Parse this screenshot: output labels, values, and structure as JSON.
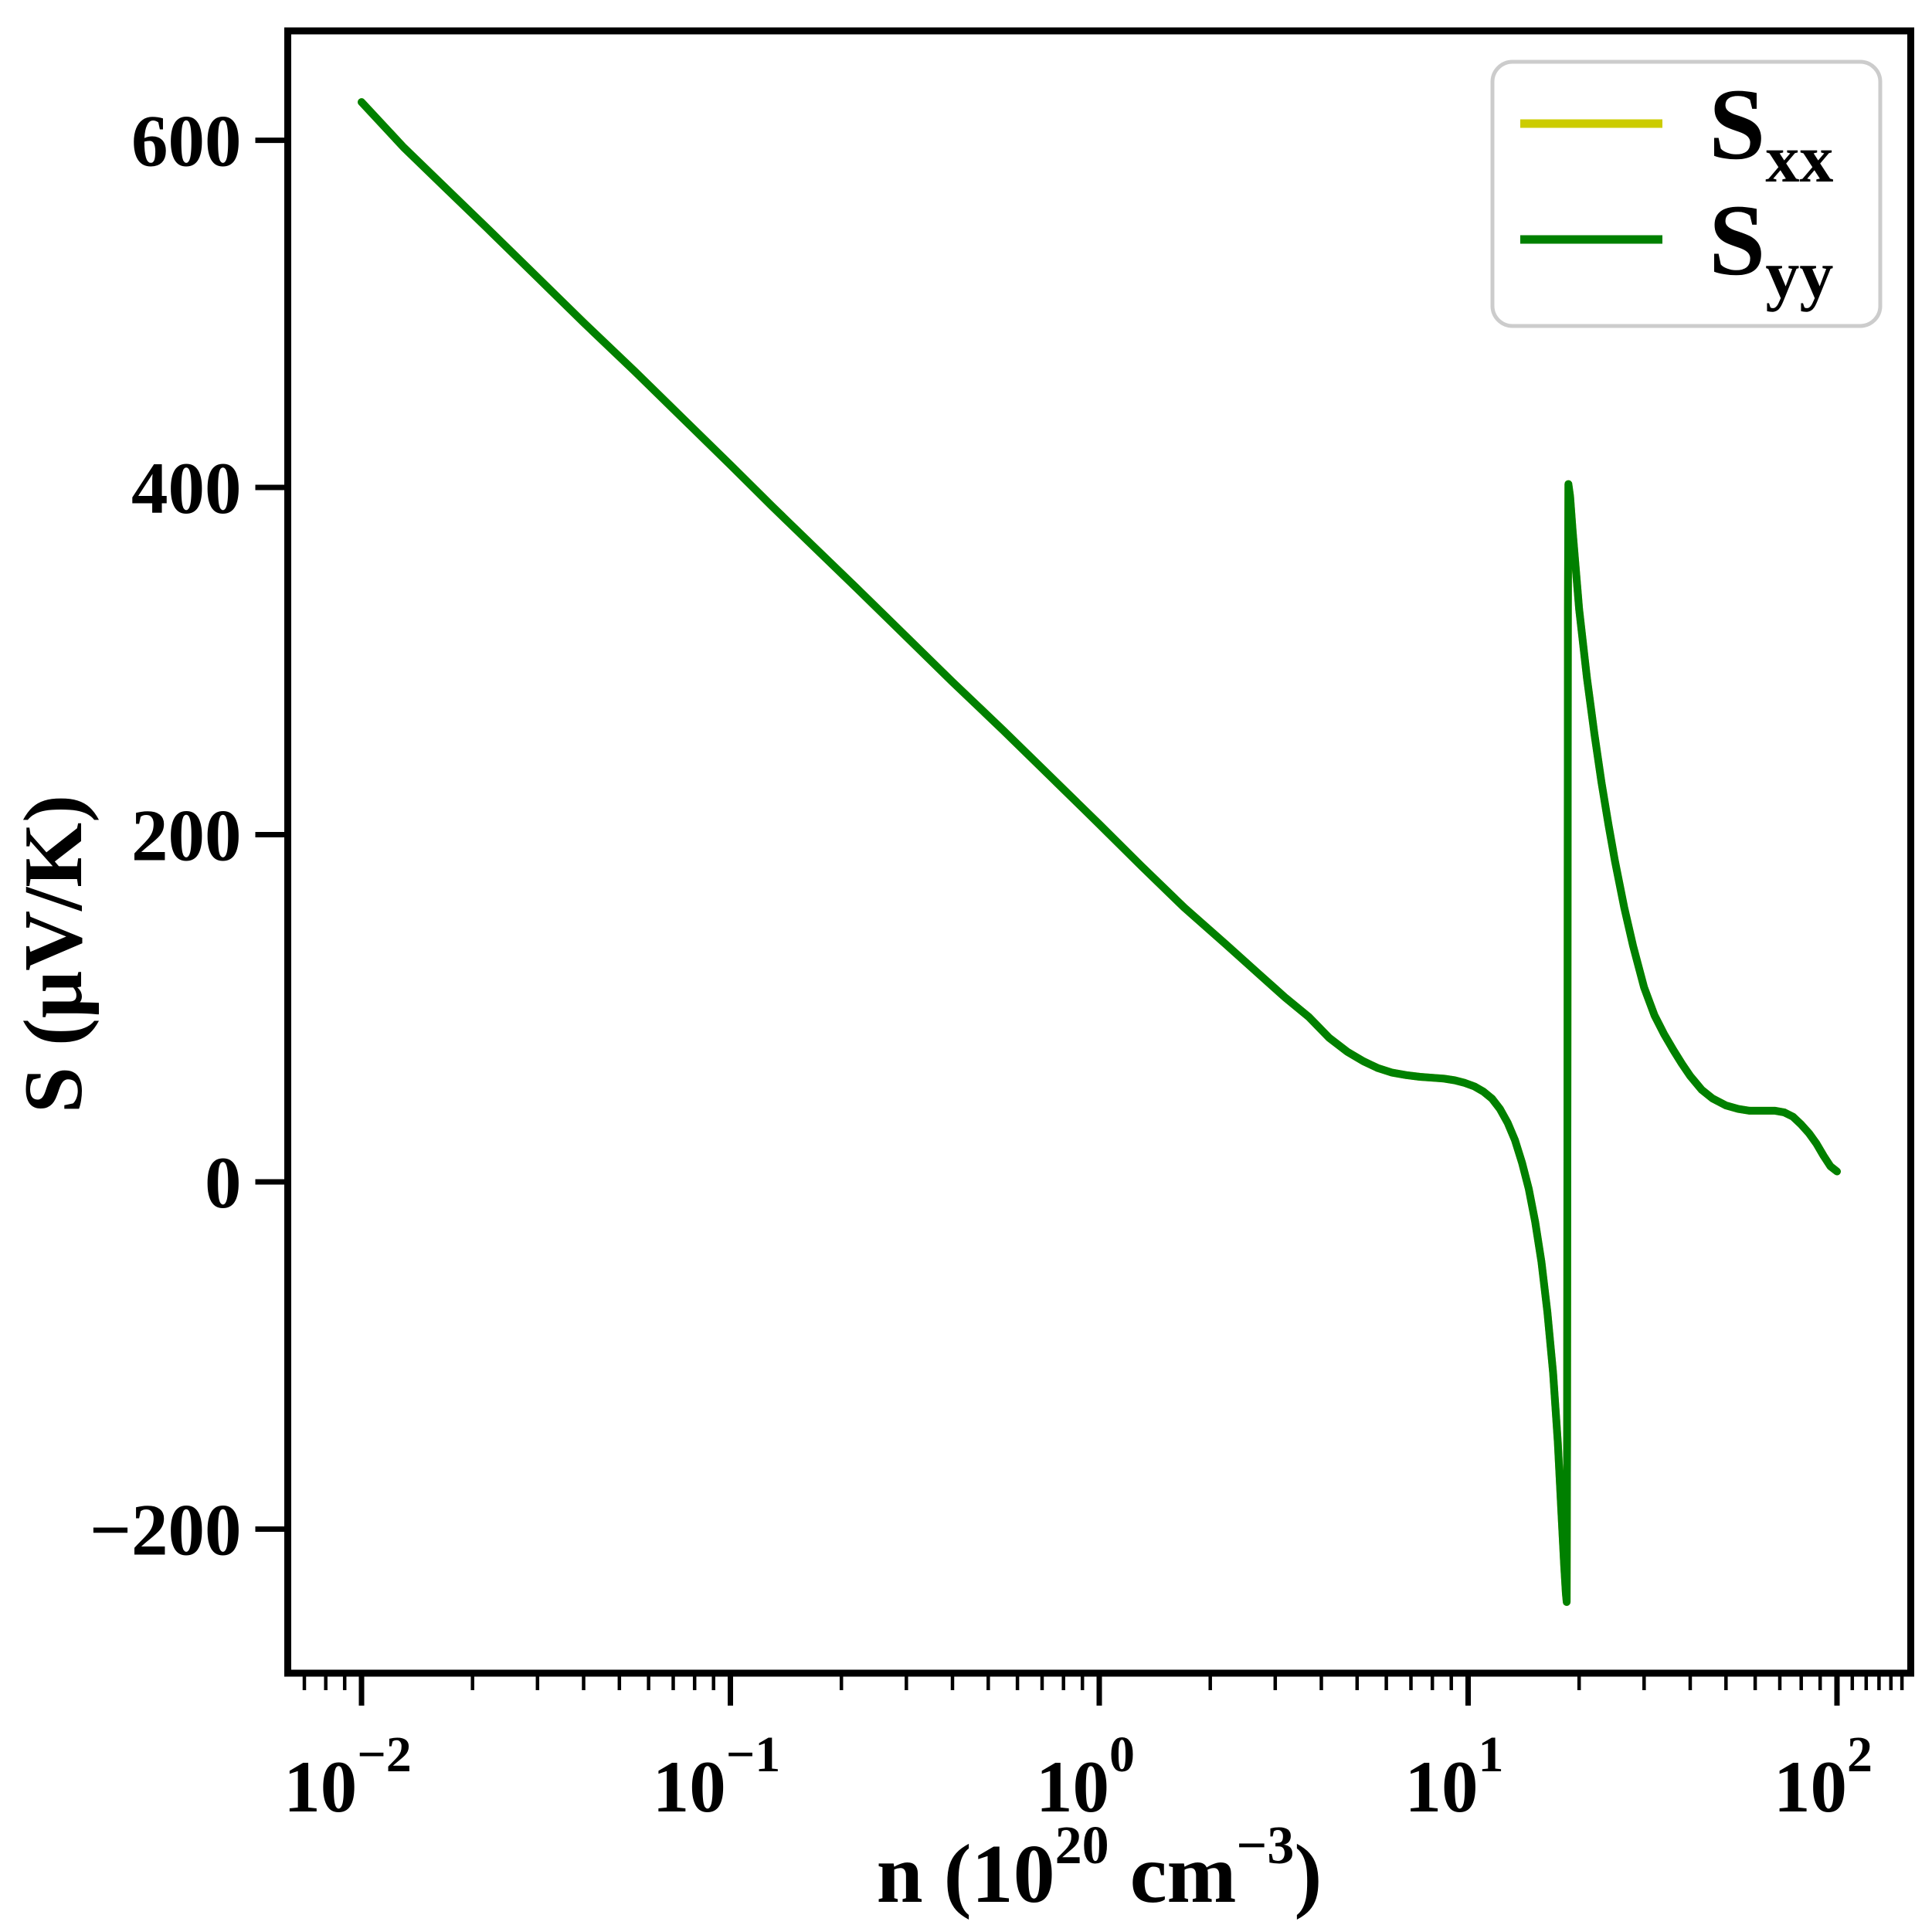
{
  "figure": {
    "background": "#ffffff",
    "axis_color": "#000000"
  },
  "chart_data": {
    "type": "line",
    "title": "",
    "xlabel": "n (10^20 cm^-3)",
    "xlabel_parts": [
      {
        "t": "n (10",
        "sup": false
      },
      {
        "t": "20",
        "sup": true
      },
      {
        "t": "  cm",
        "sup": false
      },
      {
        "t": "−3",
        "sup": true
      },
      {
        "t": ")",
        "sup": false
      }
    ],
    "ylabel": "S (μV/K)",
    "x_scale": "log",
    "xlim_log10": [
      -2.2,
      2.2
    ],
    "ylim": [
      -283,
      663
    ],
    "grid": false,
    "x_major_ticks": [
      {
        "value": 0.01,
        "base": "10",
        "exp": "−2"
      },
      {
        "value": 0.1,
        "base": "10",
        "exp": "−1"
      },
      {
        "value": 1,
        "base": "10",
        "exp": "0"
      },
      {
        "value": 10,
        "base": "10",
        "exp": "1"
      },
      {
        "value": 100,
        "base": "10",
        "exp": "2"
      }
    ],
    "x_minor_ticks": [
      0.007,
      0.008,
      0.009,
      0.02,
      0.03,
      0.04,
      0.05,
      0.06,
      0.07,
      0.08,
      0.09,
      0.2,
      0.3,
      0.4,
      0.5,
      0.6,
      0.7,
      0.8,
      0.9,
      2,
      3,
      4,
      5,
      6,
      7,
      8,
      9,
      20,
      30,
      40,
      50,
      60,
      70,
      80,
      90,
      110,
      120,
      130,
      140,
      150
    ],
    "y_ticks": [
      {
        "value": 600,
        "label": "600"
      },
      {
        "value": 400,
        "label": "400"
      },
      {
        "value": 200,
        "label": "200"
      },
      {
        "value": 0,
        "label": "0"
      },
      {
        "value": -200,
        "label": "−200"
      }
    ],
    "legend": {
      "position": "upper right",
      "border_color": "#cccccc",
      "background": "#ffffff",
      "entries": [
        {
          "label_main": "S",
          "label_sub": "xx",
          "color": "#cccc00"
        },
        {
          "label_main": "S",
          "label_sub": "yy",
          "color": "#008000"
        }
      ]
    },
    "series": [
      {
        "name": "Sxx",
        "color": "#cccc00",
        "points": [
          [
            0.01,
            622
          ],
          [
            0.013,
            596
          ],
          [
            0.017,
            572
          ],
          [
            0.022,
            549
          ],
          [
            0.03,
            521
          ],
          [
            0.04,
            495
          ],
          [
            0.055,
            467
          ],
          [
            0.075,
            439
          ],
          [
            0.1,
            413
          ],
          [
            0.13,
            389
          ],
          [
            0.17,
            365
          ],
          [
            0.22,
            342
          ],
          [
            0.3,
            314
          ],
          [
            0.4,
            288
          ],
          [
            0.55,
            260
          ],
          [
            0.75,
            232
          ],
          [
            1,
            206
          ],
          [
            1.3,
            182
          ],
          [
            1.7,
            158
          ],
          [
            2.2,
            137
          ],
          [
            2.7,
            120
          ],
          [
            3.2,
            106
          ],
          [
            3.7,
            95
          ],
          [
            4.2,
            83
          ],
          [
            4.7,
            75
          ],
          [
            5.2,
            69.5
          ],
          [
            5.7,
            65.5
          ],
          [
            6.2,
            63
          ],
          [
            6.8,
            61.5
          ],
          [
            7.4,
            60.5
          ],
          [
            8,
            60
          ],
          [
            8.6,
            59.5
          ],
          [
            9.2,
            58.5
          ],
          [
            9.8,
            57
          ],
          [
            10.4,
            55
          ],
          [
            11,
            52
          ],
          [
            11.6,
            48
          ],
          [
            12.2,
            42
          ],
          [
            12.8,
            34
          ],
          [
            13.4,
            24
          ],
          [
            14,
            11
          ],
          [
            14.6,
            -4
          ],
          [
            15.2,
            -23
          ],
          [
            15.8,
            -46
          ],
          [
            16.4,
            -75
          ],
          [
            17,
            -110
          ],
          [
            17.5,
            -150
          ],
          [
            17.9,
            -190
          ],
          [
            18.2,
            -220
          ],
          [
            18.4,
            -237
          ],
          [
            18.5,
            -242
          ],
          [
            18.55,
            -150
          ],
          [
            18.6,
            100
          ],
          [
            18.65,
            330
          ],
          [
            18.7,
            402
          ],
          [
            18.9,
            395
          ],
          [
            19.2,
            375
          ],
          [
            19.6,
            352
          ],
          [
            20,
            330
          ],
          [
            21,
            290
          ],
          [
            22,
            258
          ],
          [
            23,
            230
          ],
          [
            24,
            206
          ],
          [
            25,
            185
          ],
          [
            26.5,
            158
          ],
          [
            28,
            136
          ],
          [
            30,
            112
          ],
          [
            32,
            96
          ],
          [
            34,
            85
          ],
          [
            36,
            76
          ],
          [
            38,
            68
          ],
          [
            40,
            61
          ],
          [
            43,
            53
          ],
          [
            46,
            48
          ],
          [
            50,
            44
          ],
          [
            54,
            42
          ],
          [
            58,
            41
          ],
          [
            63,
            41
          ],
          [
            68,
            41
          ],
          [
            72,
            40
          ],
          [
            76,
            37.5
          ],
          [
            80,
            33
          ],
          [
            84,
            28
          ],
          [
            88,
            22
          ],
          [
            92,
            15
          ],
          [
            96,
            9
          ],
          [
            100,
            6
          ]
        ]
      },
      {
        "name": "Syy",
        "color": "#008000",
        "points": [
          [
            0.01,
            622
          ],
          [
            0.013,
            596
          ],
          [
            0.017,
            572
          ],
          [
            0.022,
            549
          ],
          [
            0.03,
            521
          ],
          [
            0.04,
            495
          ],
          [
            0.055,
            467
          ],
          [
            0.075,
            439
          ],
          [
            0.1,
            413
          ],
          [
            0.13,
            389
          ],
          [
            0.17,
            365
          ],
          [
            0.22,
            342
          ],
          [
            0.3,
            314
          ],
          [
            0.4,
            288
          ],
          [
            0.55,
            260
          ],
          [
            0.75,
            232
          ],
          [
            1,
            206
          ],
          [
            1.3,
            182
          ],
          [
            1.7,
            158
          ],
          [
            2.2,
            137
          ],
          [
            2.7,
            120
          ],
          [
            3.2,
            106
          ],
          [
            3.7,
            95
          ],
          [
            4.2,
            83
          ],
          [
            4.7,
            75
          ],
          [
            5.2,
            69.5
          ],
          [
            5.7,
            65.5
          ],
          [
            6.2,
            63
          ],
          [
            6.8,
            61.5
          ],
          [
            7.4,
            60.5
          ],
          [
            8,
            60
          ],
          [
            8.6,
            59.5
          ],
          [
            9.2,
            58.5
          ],
          [
            9.8,
            57
          ],
          [
            10.4,
            55
          ],
          [
            11,
            52
          ],
          [
            11.6,
            48
          ],
          [
            12.2,
            42
          ],
          [
            12.8,
            34
          ],
          [
            13.4,
            24
          ],
          [
            14,
            11
          ],
          [
            14.6,
            -4
          ],
          [
            15.2,
            -23
          ],
          [
            15.8,
            -46
          ],
          [
            16.4,
            -75
          ],
          [
            17,
            -110
          ],
          [
            17.5,
            -150
          ],
          [
            17.9,
            -190
          ],
          [
            18.2,
            -220
          ],
          [
            18.4,
            -237
          ],
          [
            18.5,
            -242
          ],
          [
            18.55,
            -150
          ],
          [
            18.6,
            100
          ],
          [
            18.65,
            330
          ],
          [
            18.7,
            402
          ],
          [
            18.9,
            395
          ],
          [
            19.2,
            375
          ],
          [
            19.6,
            352
          ],
          [
            20,
            330
          ],
          [
            21,
            290
          ],
          [
            22,
            258
          ],
          [
            23,
            230
          ],
          [
            24,
            206
          ],
          [
            25,
            185
          ],
          [
            26.5,
            158
          ],
          [
            28,
            136
          ],
          [
            30,
            112
          ],
          [
            32,
            96
          ],
          [
            34,
            85
          ],
          [
            36,
            76
          ],
          [
            38,
            68
          ],
          [
            40,
            61
          ],
          [
            43,
            53
          ],
          [
            46,
            48
          ],
          [
            50,
            44
          ],
          [
            54,
            42
          ],
          [
            58,
            41
          ],
          [
            63,
            41
          ],
          [
            68,
            41
          ],
          [
            72,
            40
          ],
          [
            76,
            37.5
          ],
          [
            80,
            33
          ],
          [
            84,
            28
          ],
          [
            88,
            22
          ],
          [
            92,
            15
          ],
          [
            96,
            9
          ],
          [
            100,
            6
          ]
        ]
      }
    ]
  }
}
